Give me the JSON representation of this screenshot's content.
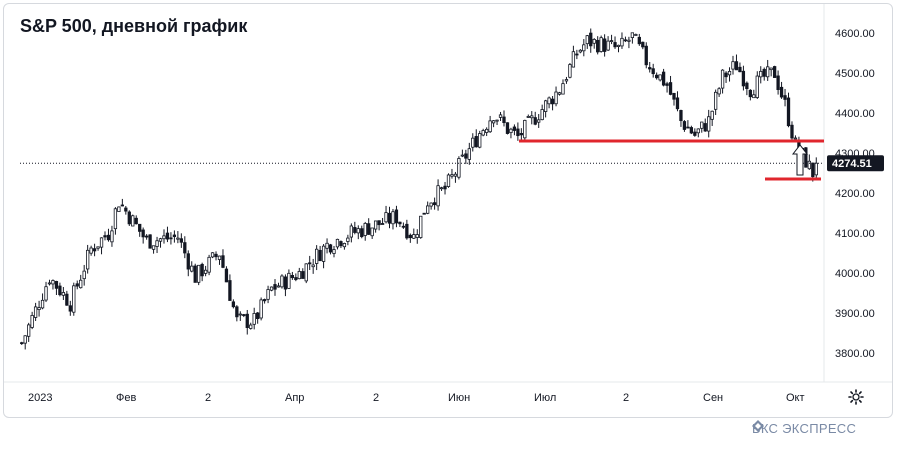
{
  "title": "S&P 500, дневной график",
  "logo_text": "БКС ЭКСПРЕСС",
  "colors": {
    "candle": "#131722",
    "level_line": "#e0262d",
    "last_price_bg": "#131722",
    "grid_text": "#131722",
    "logo": "#7a8aa5"
  },
  "chart_data": {
    "type": "candlestick",
    "title": "S&P 500, дневной график",
    "y_axis": {
      "min": 3750,
      "max": 4640,
      "ticks": [
        3800,
        3900,
        4000,
        4100,
        4200,
        4300,
        4400,
        4500,
        4600
      ],
      "tick_labels": [
        "3800.00",
        "3900.00",
        "4000.00",
        "4100.00",
        "4200.00",
        "4300.00",
        "4400.00",
        "4500.00",
        "4600.00"
      ]
    },
    "x_axis": {
      "labels": [
        "2023",
        "Фев",
        "2",
        "Апр",
        "2",
        "Июн",
        "Июл",
        "2",
        "Сен",
        "Окт"
      ]
    },
    "last_price": 4274.51,
    "last_price_label": "4274.51",
    "support_levels": [
      4330,
      4235
    ],
    "arrow_up": true,
    "close_path": [
      [
        0,
        3825
      ],
      [
        8,
        3990
      ],
      [
        14,
        3925
      ],
      [
        20,
        4060
      ],
      [
        25,
        4100
      ],
      [
        28,
        4180
      ],
      [
        36,
        4080
      ],
      [
        45,
        4090
      ],
      [
        50,
        3990
      ],
      [
        57,
        4050
      ],
      [
        62,
        3880
      ],
      [
        67,
        3880
      ],
      [
        72,
        3960
      ],
      [
        80,
        4000
      ],
      [
        88,
        4070
      ],
      [
        95,
        4100
      ],
      [
        102,
        4120
      ],
      [
        108,
        4140
      ],
      [
        113,
        4090
      ],
      [
        117,
        4180
      ],
      [
        122,
        4210
      ],
      [
        127,
        4280
      ],
      [
        132,
        4350
      ],
      [
        136,
        4400
      ],
      [
        140,
        4360
      ],
      [
        143,
        4340
      ],
      [
        149,
        4400
      ],
      [
        155,
        4460
      ],
      [
        160,
        4550
      ],
      [
        163,
        4580
      ],
      [
        168,
        4570
      ],
      [
        172,
        4560
      ],
      [
        176,
        4590
      ],
      [
        180,
        4530
      ],
      [
        186,
        4470
      ],
      [
        190,
        4380
      ],
      [
        194,
        4345
      ],
      [
        198,
        4380
      ],
      [
        202,
        4490
      ],
      [
        206,
        4520
      ],
      [
        210,
        4460
      ],
      [
        214,
        4490
      ],
      [
        217,
        4500
      ],
      [
        220,
        4420
      ],
      [
        223,
        4320
      ],
      [
        226,
        4280
      ],
      [
        228,
        4250
      ],
      [
        229,
        4274.51
      ]
    ]
  }
}
